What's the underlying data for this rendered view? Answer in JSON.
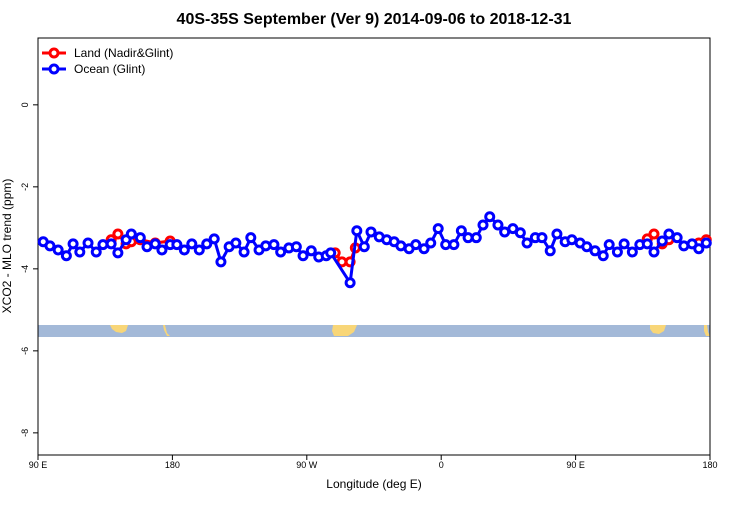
{
  "chart_data": {
    "type": "line",
    "title": "40S-35S September (Ver 9)   2014-09-06 to 2018-12-31",
    "xlabel": "Longitude (deg E)",
    "ylabel": "XCO2 - MLO trend (ppm)",
    "xlim": [
      90,
      540
    ],
    "ylim": [
      -8.54,
      1.63
    ],
    "xticks": [
      {
        "value": 90,
        "label": "90 E"
      },
      180,
      {
        "value": 270,
        "label": "90 W"
      },
      {
        "value": 360,
        "label": "0"
      },
      {
        "value": 450,
        "label": "90 E"
      },
      {
        "value": 540,
        "label": "180"
      }
    ],
    "yticks": [
      0,
      -2,
      -4,
      -6,
      -8
    ],
    "legend": "topleft",
    "series": [
      {
        "name": "Land (Nadir&Glint)",
        "color": "#ff0000",
        "x": [
          139,
          143.5,
          149,
          152.5,
          158.5,
          168.5,
          178.5,
          230,
          289,
          293.5,
          299,
          302.5,
          400,
          498,
          502.5,
          508,
          512.5,
          520,
          532.5,
          537.5
        ],
        "values": [
          -3.29,
          -3.15,
          -3.39,
          -3.34,
          -3.29,
          -3.37,
          -3.32,
          null,
          -3.61,
          -3.83,
          -3.83,
          -3.49,
          null,
          -3.27,
          -3.15,
          -3.39,
          -3.29,
          null,
          -3.37,
          -3.29
        ]
      },
      {
        "name": "Ocean (Glint)",
        "color": "#0000ff",
        "x": [
          93.5,
          98,
          103.5,
          109,
          113.5,
          118,
          123.5,
          129,
          133.5,
          139,
          143.5,
          149,
          152.5,
          158.5,
          163,
          168.5,
          173,
          178.5,
          183,
          188,
          193,
          198,
          203,
          208,
          212.5,
          218,
          222.5,
          228,
          232.5,
          238,
          242.5,
          248,
          252.5,
          258,
          263,
          267.5,
          273,
          278,
          283,
          286,
          299,
          303.5,
          308.5,
          313,
          318.5,
          323.5,
          328.5,
          333,
          338.5,
          343,
          348.5,
          353,
          358,
          363,
          368.5,
          373.5,
          378,
          383.5,
          388,
          392.5,
          398,
          402.5,
          408,
          413,
          417.5,
          423,
          427.5,
          433,
          437.5,
          443,
          447.5,
          453,
          457.5,
          463,
          468.5,
          472.5,
          478,
          482.5,
          488,
          493,
          498,
          502.5,
          508,
          512.5,
          518,
          522.5,
          528,
          532.5,
          537.5
        ],
        "values": [
          -3.34,
          -3.44,
          -3.54,
          -3.68,
          -3.39,
          -3.59,
          -3.37,
          -3.59,
          -3.41,
          -3.39,
          -3.61,
          -3.29,
          -3.15,
          -3.24,
          -3.46,
          -3.39,
          -3.54,
          -3.41,
          -3.41,
          -3.54,
          -3.39,
          -3.54,
          -3.39,
          -3.27,
          -3.83,
          -3.46,
          -3.37,
          -3.59,
          -3.24,
          -3.54,
          -3.44,
          -3.41,
          -3.59,
          -3.49,
          -3.46,
          -3.68,
          -3.56,
          -3.71,
          -3.68,
          -3.61,
          -4.34,
          -3.07,
          -3.46,
          -3.1,
          -3.22,
          -3.29,
          -3.34,
          -3.44,
          -3.51,
          -3.41,
          -3.51,
          -3.37,
          -3.02,
          -3.41,
          -3.41,
          -3.07,
          -3.24,
          -3.24,
          -2.93,
          -2.73,
          -2.93,
          -3.1,
          -3.02,
          -3.12,
          -3.37,
          -3.24,
          -3.24,
          -3.56,
          -3.15,
          -3.34,
          -3.29,
          -3.37,
          -3.46,
          -3.56,
          -3.68,
          -3.41,
          -3.59,
          -3.39,
          -3.59,
          -3.41,
          -3.39,
          -3.59,
          -3.32,
          -3.15,
          -3.24,
          -3.44,
          -3.39,
          -3.51,
          -3.37
        ]
      }
    ]
  }
}
